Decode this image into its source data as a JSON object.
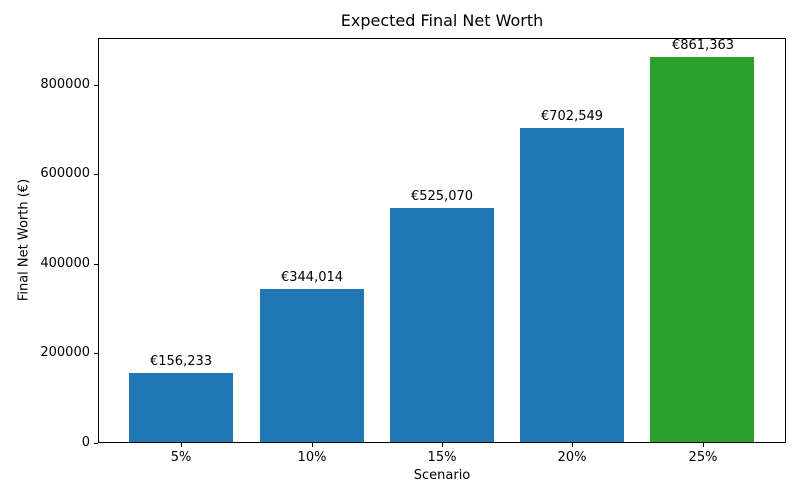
{
  "chart_data": {
    "type": "bar",
    "title": "Expected Final Net Worth",
    "xlabel": "Scenario",
    "ylabel": "Final Net Worth (€)",
    "categories": [
      "5%",
      "10%",
      "15%",
      "20%",
      "25%"
    ],
    "values": [
      156233,
      344014,
      525070,
      702549,
      861363
    ],
    "bar_labels": [
      "€156,233",
      "€344,014",
      "€525,070",
      "€702,549",
      "€861,363"
    ],
    "bar_colors": [
      "#1f77b4",
      "#1f77b4",
      "#1f77b4",
      "#1f77b4",
      "#2ca02c"
    ],
    "yticks": [
      0,
      200000,
      400000,
      600000,
      800000
    ],
    "ytick_labels": [
      "0",
      "200000",
      "400000",
      "600000",
      "800000"
    ],
    "ylim": [
      0,
      904431
    ],
    "grid": false,
    "legend": null
  },
  "colors": {
    "bar_blue": "#1f77b4",
    "bar_green": "#2ca02c",
    "axis": "#000000",
    "text": "#000000",
    "background": "#ffffff"
  }
}
